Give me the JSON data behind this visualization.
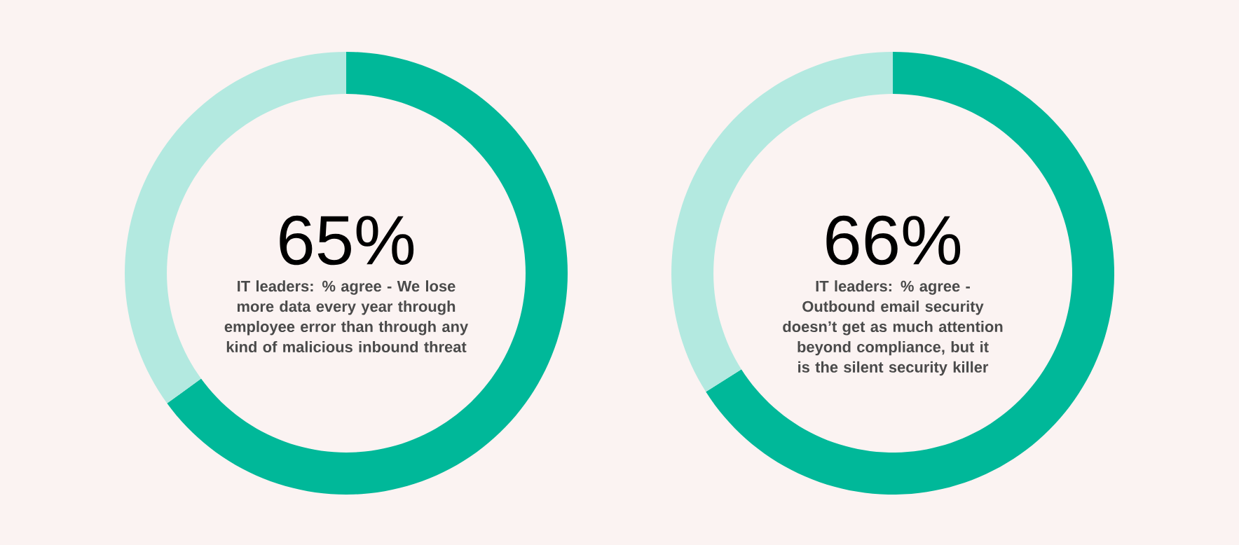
{
  "chart_data": [
    {
      "type": "donut",
      "title": "IT leaders: % agree - We lose more data every year through employee error than through any kind of malicious inbound threat",
      "categories": [
        null,
        null
      ],
      "values": [
        65,
        35
      ],
      "colors": [
        "#00b899",
        "#b3e9e0"
      ],
      "value_labels": [
        "65%",
        null
      ]
    },
    {
      "type": "donut",
      "title": "IT leaders: % agree - Outbound email security doesn’t get as much attention beyond compliance, but it is the silent security killer",
      "categories": [
        null,
        null
      ],
      "values": [
        66,
        34
      ],
      "colors": [
        "#00b899",
        "#b3e9e0"
      ],
      "value_labels": [
        "66%",
        null
      ]
    }
  ]
}
